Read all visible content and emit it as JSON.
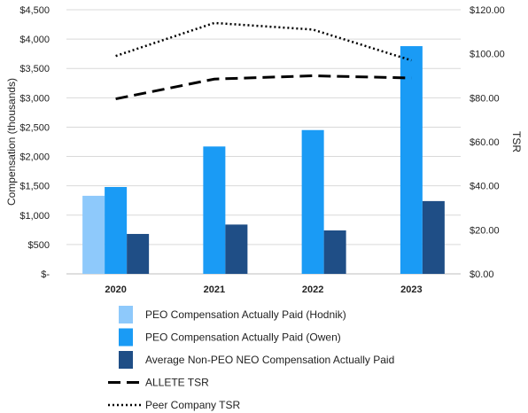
{
  "chart_data": {
    "type": "bar",
    "categories": [
      "2020",
      "2021",
      "2022",
      "2023"
    ],
    "bar_series": [
      {
        "name": "PEO Compensation Actually Paid (Hodnik)",
        "color": "#8ec9fb",
        "values": [
          1330,
          null,
          null,
          null
        ]
      },
      {
        "name": "PEO Compensation Actually Paid (Owen)",
        "color": "#1a9bf5",
        "values": [
          1480,
          2170,
          2450,
          3880
        ]
      },
      {
        "name": "Average Non-PEO NEO Compensation Actually Paid",
        "color": "#1f4e86",
        "values": [
          680,
          840,
          740,
          1240
        ]
      }
    ],
    "line_series": [
      {
        "name": "ALLETE TSR",
        "style": "dashed",
        "color": "#000000",
        "values": [
          79.5,
          88.5,
          90.0,
          89.0
        ]
      },
      {
        "name": "Peer Company TSR",
        "style": "dotted",
        "color": "#000000",
        "values": [
          99.0,
          114.0,
          111.0,
          97.0
        ]
      }
    ],
    "ylabel": "Compensation (thousands)",
    "y2label": "TSR",
    "ylim": [
      0,
      4500
    ],
    "y2lim": [
      0,
      120
    ],
    "yticks": [
      "$-",
      "$500",
      "$1,000",
      "$1,500",
      "$2,000",
      "$2,500",
      "$3,000",
      "$3,500",
      "$4,000",
      "$4,500"
    ],
    "y2ticks": [
      "$0.00",
      "$20.00",
      "$40.00",
      "$60.00",
      "$80.00",
      "$100.00",
      "$120.00"
    ],
    "grid": "horizontal",
    "legend_placement": "bottom"
  }
}
